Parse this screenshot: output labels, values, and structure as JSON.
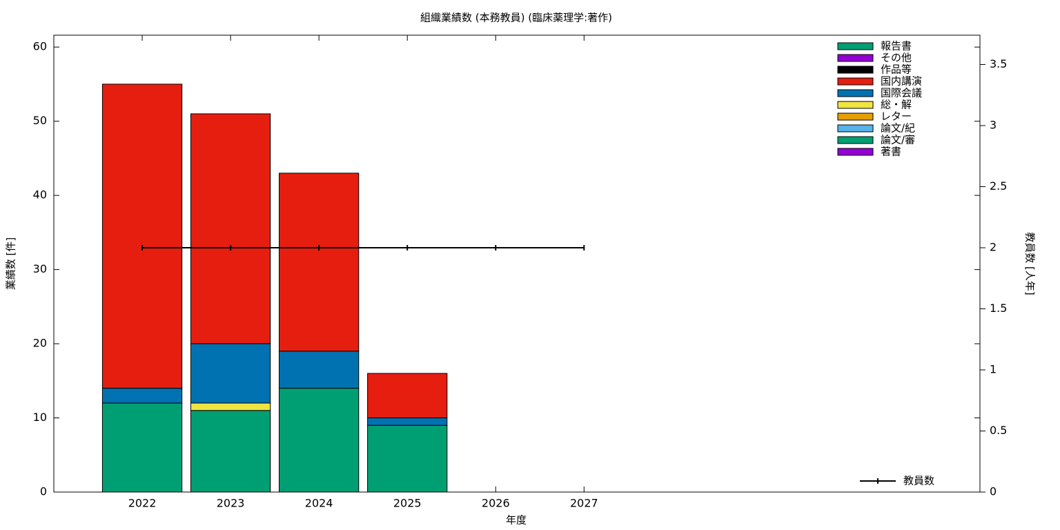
{
  "chart_data": {
    "type": "bar",
    "title": "組織業績数 (本務教員) (臨床薬理学:著作)",
    "x_label": "年度",
    "y_label": "業績数 [件]",
    "y2_label": "教員数 [人年]",
    "x": [
      2022,
      2023,
      2024,
      2025,
      2026,
      2027
    ],
    "xlim": [
      2021,
      2031.48
    ],
    "xticks": [
      2022,
      2023,
      2024,
      2025,
      2026,
      2027
    ],
    "ylim": [
      0,
      61.6
    ],
    "yticks": [
      0,
      10,
      20,
      30,
      40,
      50,
      60
    ],
    "y2lim": [
      0,
      3.74
    ],
    "y2ticks": [
      0,
      0.5,
      1,
      1.5,
      2,
      2.5,
      3,
      3.5
    ],
    "series": [
      {
        "name": "著書",
        "color": "#9400d3",
        "values": [
          0,
          0,
          0,
          0,
          0,
          0
        ]
      },
      {
        "name": "論文/審",
        "color": "#009e73",
        "values": [
          12,
          11,
          14,
          9,
          0,
          0
        ]
      },
      {
        "name": "論文/紀",
        "color": "#56b4e9",
        "values": [
          0,
          0,
          0,
          0,
          0,
          0
        ]
      },
      {
        "name": "レター",
        "color": "#e69f00",
        "values": [
          0,
          0,
          0,
          0,
          0,
          0
        ]
      },
      {
        "name": "総・解",
        "color": "#f0e442",
        "values": [
          0,
          1,
          0,
          0,
          0,
          0
        ]
      },
      {
        "name": "国際会議",
        "color": "#0072b2",
        "values": [
          2,
          8,
          5,
          1,
          0,
          0
        ]
      },
      {
        "name": "国内講演",
        "color": "#e51e10",
        "values": [
          41,
          31,
          24,
          6,
          0,
          0
        ]
      },
      {
        "name": "作品等",
        "color": "#000000",
        "values": [
          0,
          0,
          0,
          0,
          0,
          0
        ]
      },
      {
        "name": "その他",
        "color": "#9400d3",
        "values": [
          0,
          0,
          0,
          0,
          0,
          0
        ]
      },
      {
        "name": "報告書",
        "color": "#009e73",
        "values": [
          0,
          0,
          0,
          0,
          0,
          0
        ]
      },
      {
        "name": "教員数",
        "color": "#000000",
        "axis": "y2",
        "type": "line",
        "values": [
          2,
          2,
          2,
          2,
          2,
          2
        ]
      }
    ]
  }
}
